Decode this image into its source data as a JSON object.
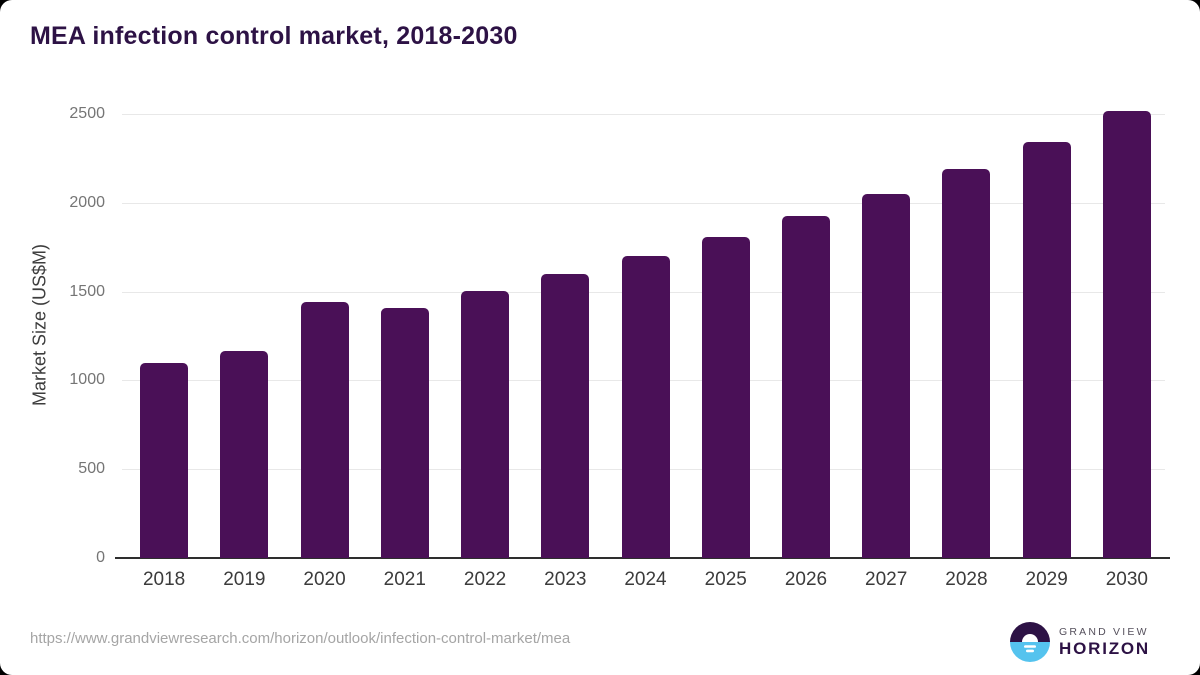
{
  "page_title": "MEA infection control market, 2018-2030",
  "chart_data": {
    "type": "bar",
    "title": "MEA infection control market, 2018-2030",
    "categories": [
      "2018",
      "2019",
      "2020",
      "2021",
      "2022",
      "2023",
      "2024",
      "2025",
      "2026",
      "2027",
      "2028",
      "2029",
      "2030"
    ],
    "values": [
      1100,
      1165,
      1440,
      1410,
      1505,
      1600,
      1700,
      1805,
      1925,
      2050,
      2190,
      2345,
      2515
    ],
    "xlabel": "",
    "ylabel": "Market Size (US$M)",
    "ylim": [
      0,
      2500
    ],
    "yticks": [
      0,
      500,
      1000,
      1500,
      2000,
      2500
    ],
    "grid": true,
    "legend": "none",
    "bar_color": "#4a1057"
  },
  "colors": {
    "title": "#2d1245",
    "bar": "#4a1057",
    "gridline": "#e8e8e8",
    "axis_line": "#2e2e2e",
    "y_tick_label": "#757575",
    "x_tick_label": "#3b3b3b",
    "url_text": "#a5a5a5",
    "logo_purple": "#2d1245",
    "logo_blue": "#55c3ee"
  },
  "footer": {
    "source_url": "https://www.grandviewresearch.com/horizon/outlook/infection-control-market/mea",
    "logo": {
      "line1": "GRAND VIEW",
      "line2": "HORIZON",
      "icon": "horizon-sunrise-icon"
    }
  }
}
